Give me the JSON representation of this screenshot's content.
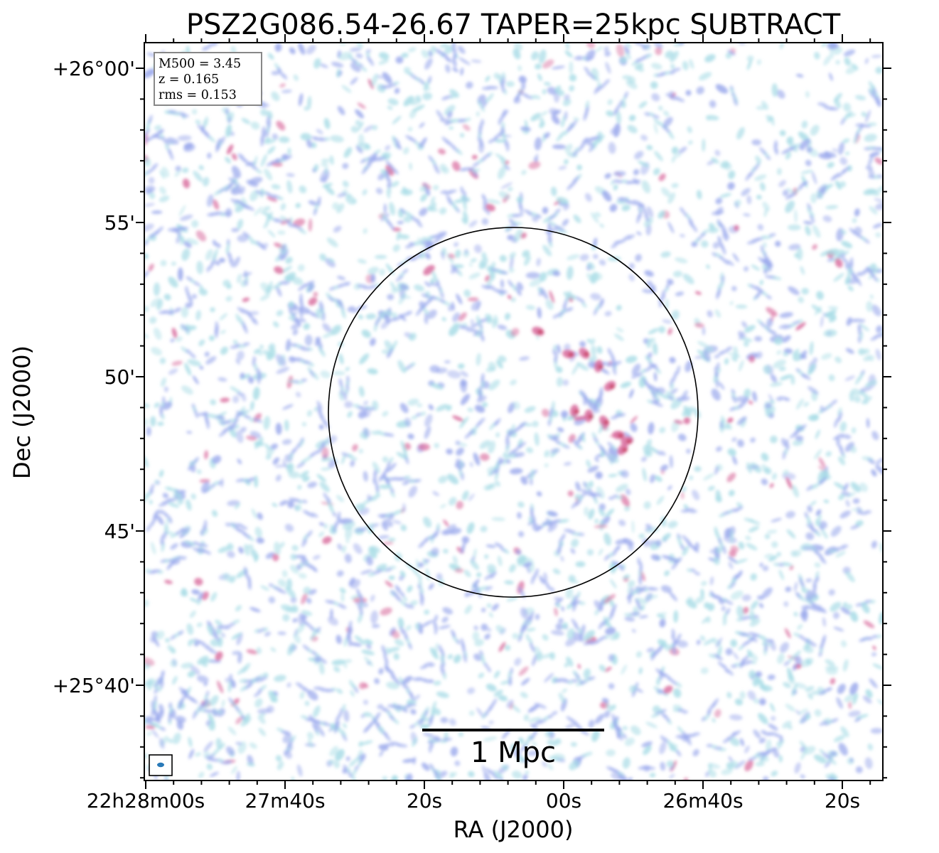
{
  "title": "PSZ2G086.54-26.67 TAPER=25kpc SUBTRACT",
  "info_box": {
    "lines": [
      "M500 = 3.45",
      "z = 0.165",
      "rms = 0.153"
    ]
  },
  "axes": {
    "xlabel": "RA (J2000)",
    "ylabel": "Dec (J2000)",
    "x_ticks": [
      "22h28m00s",
      "27m40s",
      "20s",
      "00s",
      "26m40s",
      "20s"
    ],
    "y_ticks": [
      "+26°00'",
      "55'",
      "50'",
      "45'",
      "+25°40'"
    ]
  },
  "scale_bar": {
    "label": "1 Mpc"
  },
  "colors": {
    "background": "#ffffff",
    "emission_low": "#a8dce6",
    "emission_mid": "#9aa8ec",
    "emission_high": "#d86a9c",
    "emission_peak": "#c43a56",
    "beam": "#2a7ab8",
    "frame": "#000000"
  }
}
